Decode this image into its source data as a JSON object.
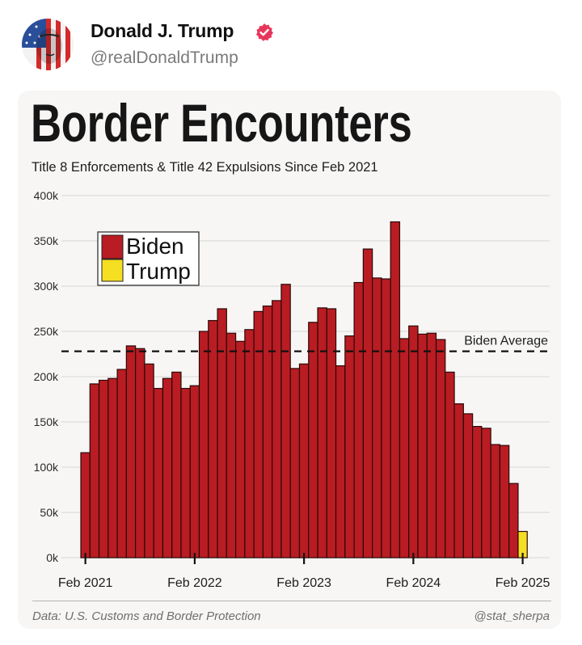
{
  "post": {
    "author_name": "Donald J. Trump",
    "handle": "@realDonaldTrump",
    "verified_icon": "verified-badge-icon",
    "badge_color": "#e8365a"
  },
  "chart_data": {
    "type": "bar",
    "title": "Border Encounters",
    "subtitle": "Title 8 Enforcements & Title 42 Expulsions Since Feb 2021",
    "xlabel": "",
    "ylabel": "",
    "ylim": [
      0,
      400000
    ],
    "yticks": [
      0,
      50000,
      100000,
      150000,
      200000,
      250000,
      300000,
      350000,
      400000
    ],
    "ytick_labels": [
      "0k",
      "50k",
      "100k",
      "150k",
      "200k",
      "250k",
      "300k",
      "350k",
      "400k"
    ],
    "xtick_labels": [
      "Feb 2021",
      "Feb 2022",
      "Feb 2023",
      "Feb 2024",
      "Feb 2025"
    ],
    "xtick_indices": [
      0,
      12,
      24,
      36,
      48
    ],
    "grid": true,
    "legend_position": "top-left",
    "series": [
      {
        "name": "Biden",
        "color": "#b91c22",
        "start": "Feb 2021",
        "values": [
          116000,
          192000,
          196000,
          198000,
          208000,
          234000,
          231000,
          214000,
          187000,
          198000,
          205000,
          187000,
          190000,
          250000,
          262000,
          275000,
          248000,
          239000,
          252000,
          272000,
          278000,
          284000,
          302000,
          209000,
          214000,
          260000,
          276000,
          275000,
          212000,
          245000,
          304000,
          341000,
          309000,
          308000,
          371000,
          242000,
          256000,
          247000,
          248000,
          241000,
          205000,
          170000,
          159000,
          145000,
          143000,
          125000,
          124000,
          82000
        ]
      },
      {
        "name": "Trump",
        "color": "#f5df22",
        "start": "Feb 2025",
        "values": [
          29000
        ]
      }
    ],
    "reference_line": {
      "label": "Biden Average",
      "value": 228000,
      "style": "dashed"
    },
    "source": "Data: U.S. Customs and Border Protection",
    "credit": "@stat_sherpa"
  }
}
